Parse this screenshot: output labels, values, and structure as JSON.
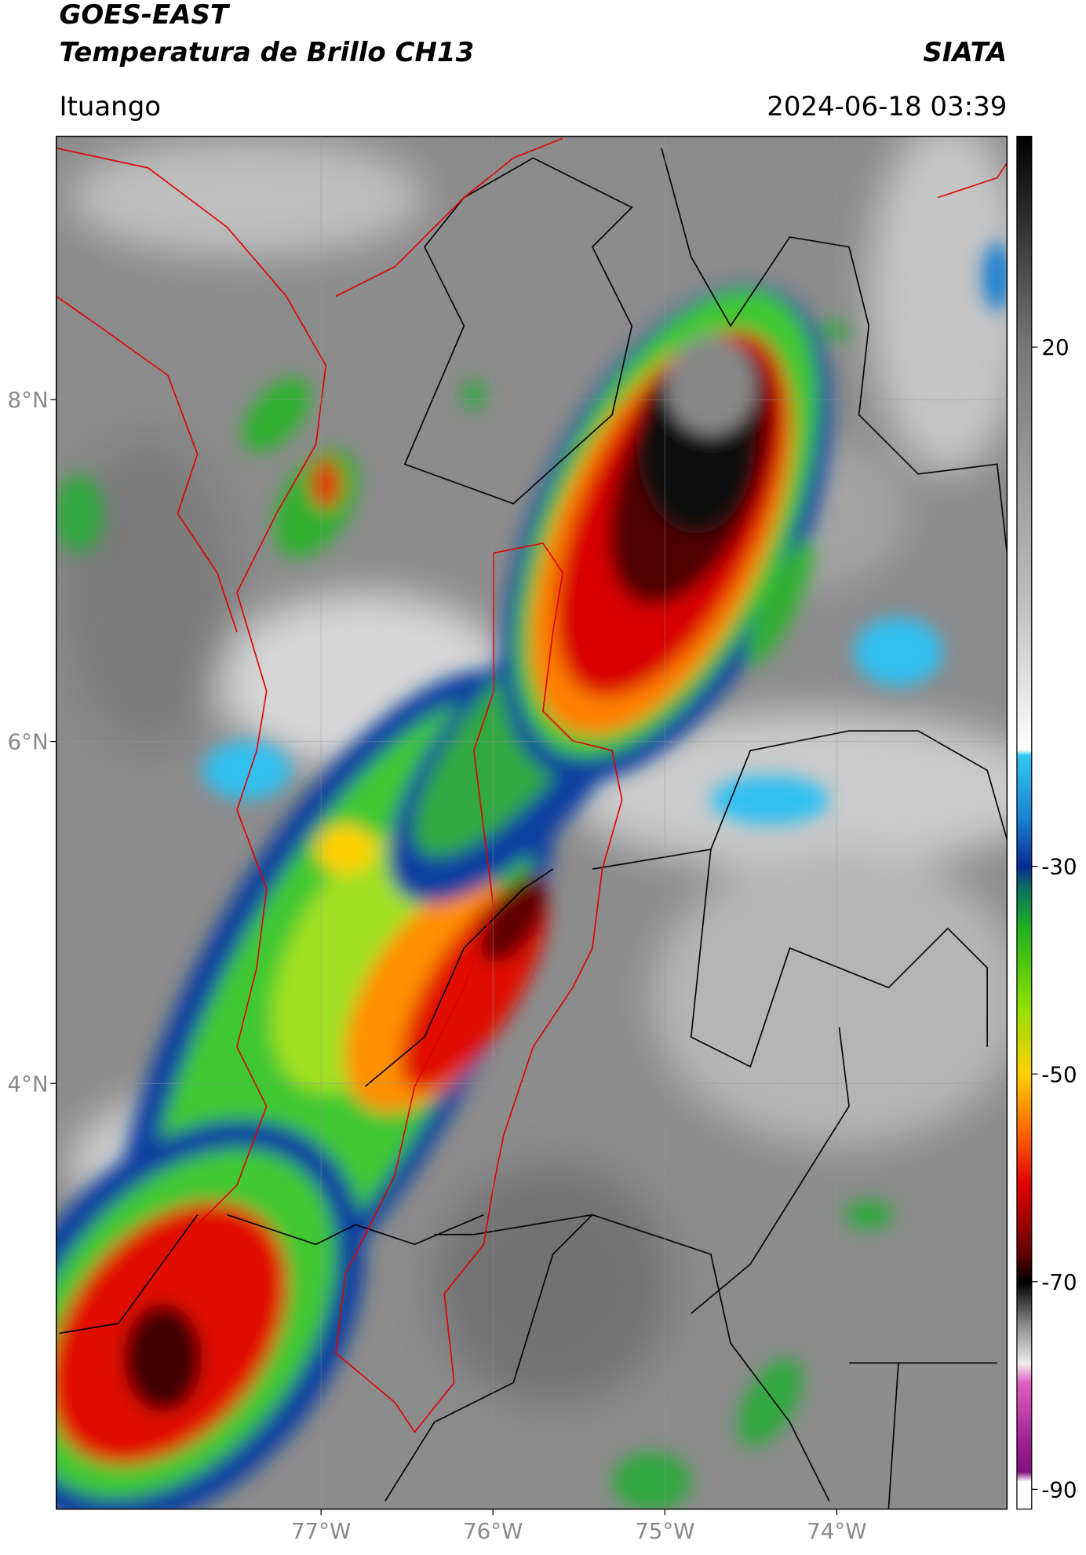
{
  "header": {
    "title": "GOES-EAST",
    "subtitle": "Temperatura de Brillo CH13",
    "source": "SIATA",
    "location": "Ituango",
    "datetime": "2024-06-18 03:39"
  },
  "map": {
    "xlim": [
      -78.54,
      -73.01
    ],
    "ylim": [
      1.51,
      9.54
    ],
    "xticks": [
      {
        "value": -77,
        "label": "77°W"
      },
      {
        "value": -76,
        "label": "76°W"
      },
      {
        "value": -75,
        "label": "75°W"
      },
      {
        "value": -74,
        "label": "74°W"
      }
    ],
    "yticks": [
      {
        "value": 8,
        "label": "8°N"
      },
      {
        "value": 6,
        "label": "6°N"
      },
      {
        "value": 4,
        "label": "4°N"
      }
    ],
    "grid": true
  },
  "colorbar": {
    "lim": [
      -91.9,
      40.3
    ],
    "ticks": [
      20,
      -30,
      -50,
      -70,
      -90
    ]
  }
}
